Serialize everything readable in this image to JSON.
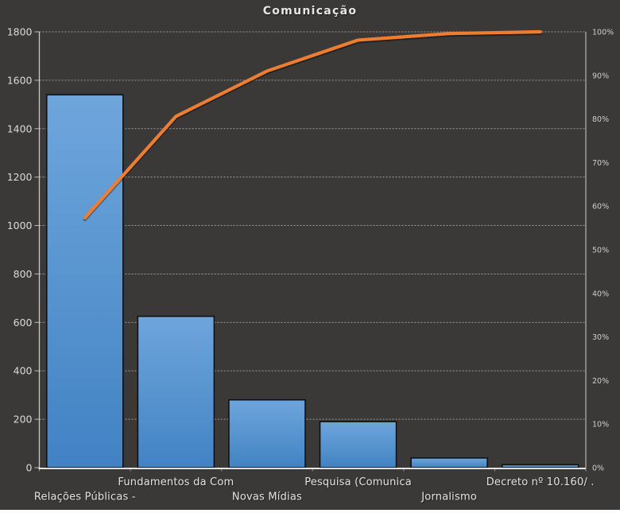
{
  "title": "Comunicação",
  "chart_data": {
    "type": "bar",
    "overlay": "line",
    "subtype": "pareto",
    "title": "Comunicação",
    "categories": [
      "Relações Públicas -",
      "Fundamentos  da Com",
      "Novas Mídias",
      "Pesquisa (Comunica",
      "Jornalismo",
      "Decreto nº 10.160/ ."
    ],
    "bar_values": [
      1540,
      625,
      280,
      190,
      40,
      12
    ],
    "cumulative_pct": [
      57.3,
      80.6,
      91.0,
      98.1,
      99.6,
      100
    ],
    "left_axis": {
      "min": 0,
      "max": 1800,
      "step": 200,
      "labels": [
        "1800",
        "1600",
        "1400",
        "1200",
        "1000",
        "800",
        "600",
        "400",
        "200",
        "0"
      ]
    },
    "right_axis": {
      "min": 0,
      "max": 100,
      "step": 10,
      "labels": [
        "100%",
        "90%",
        "80%",
        "70%",
        "60%",
        "50%",
        "40%",
        "30%",
        "20%",
        "10%",
        "0%"
      ]
    },
    "grid": "dotted horizontal",
    "legend": "none",
    "colors": {
      "background": "#3b3838",
      "bar_top": "#6ea6db",
      "bar_bottom": "#4282c4",
      "bar_border": "#0d0d0d",
      "line": "#ed7d31",
      "gridline": "#c9c6c5",
      "axis": "#d9d9d9",
      "bottom_axis": "#fbfaf9",
      "text_left": "#dcdad9",
      "text_right": "#cfcdcc",
      "text_x": "#e5e3e2",
      "title_text": "#e8e6e5"
    }
  }
}
